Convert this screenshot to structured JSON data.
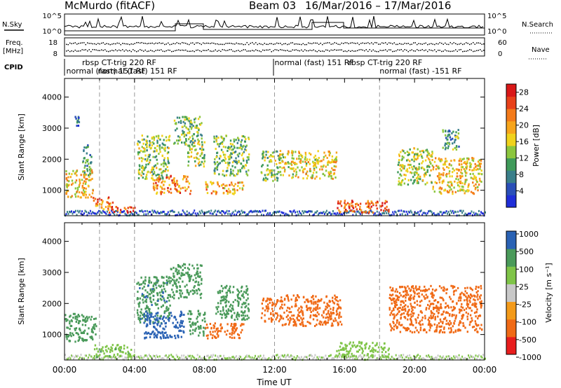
{
  "header": {
    "radar": "McMurdo (fitACF)",
    "beam": "Beam 03",
    "date_range": "16/Mar/2016 – 17/Mar/2016"
  },
  "top_panels": {
    "nsky_label": "N.Sky",
    "nsearch_label": "N.Search",
    "count_ticks_left": [
      "10^5",
      "10^0"
    ],
    "count_ticks_right": [
      "10^5",
      "10^0"
    ],
    "freq_label_1": "Freq.",
    "freq_label_2": "[MHz]",
    "freq_ticks": [
      "18",
      "8"
    ],
    "nave_label": "Nave",
    "nave_ticks": [
      "60",
      "0"
    ],
    "cpid_label": "CPID",
    "cpid_segments": [
      {
        "text": "rbsp CT-trig 220 RF",
        "row": 1,
        "t": 1.0
      },
      {
        "text": "normal (fast) 151 RF",
        "row": 2,
        "t": 0.1
      },
      {
        "text": "normal (fast) 151 RF",
        "row": 2,
        "t": 1.9
      },
      {
        "text": "normal (fast) 151 RF",
        "row": 1,
        "t": 12.0
      },
      {
        "text": "rbsp CT-trig 220 RF",
        "row": 1,
        "t": 16.2
      },
      {
        "text": "normal (fast) -151 RF",
        "row": 2,
        "t": 18.0
      }
    ]
  },
  "axes": {
    "x_ticks": [
      "00:00",
      "04:00",
      "08:00",
      "12:00",
      "16:00",
      "20:00",
      "00:00"
    ],
    "x_label": "Time UT",
    "y_ticks": [
      "1000",
      "2000",
      "3000",
      "4000"
    ],
    "y_label": "Slant Range [km]"
  },
  "colorbars": {
    "power": {
      "label": "Power [dB]",
      "ticks": [
        "4",
        "8",
        "12",
        "16",
        "20",
        "24",
        "28"
      ]
    },
    "velocity": {
      "label": "Velocity [m s⁻¹]",
      "ticks": [
        "1000",
        "500",
        "100",
        "25",
        "-25",
        "-100",
        "-500",
        "-1000"
      ]
    }
  },
  "chart_data": [
    {
      "type": "heatmap",
      "title": "Power",
      "xlabel": "Time UT",
      "ylabel": "Slant Range [km]",
      "xlim": [
        0,
        24
      ],
      "ylim": [
        180,
        4600
      ],
      "colorbar_label": "Power [dB]",
      "colorbar_range": [
        0,
        30
      ],
      "dashed_times": [
        2.0,
        4.0,
        12.0,
        18.0
      ],
      "patches": [
        {
          "t0": 0.0,
          "t1": 1.6,
          "r0": 800,
          "r1": 1700,
          "v": 18
        },
        {
          "t0": 0.5,
          "t1": 1.0,
          "r0": 3100,
          "r1": 3400,
          "v": 6
        },
        {
          "t0": 1.0,
          "t1": 1.5,
          "r0": 1500,
          "r1": 2500,
          "v": 9
        },
        {
          "t0": 1.6,
          "t1": 2.8,
          "r0": 400,
          "r1": 800,
          "v": 22
        },
        {
          "t0": 2.5,
          "t1": 4.0,
          "r0": 300,
          "r1": 500,
          "v": 26
        },
        {
          "t0": 4.1,
          "t1": 6.0,
          "r0": 1400,
          "r1": 2800,
          "v": 13
        },
        {
          "t0": 5.0,
          "t1": 7.2,
          "r0": 900,
          "r1": 1500,
          "v": 22
        },
        {
          "t0": 6.2,
          "t1": 7.8,
          "r0": 2500,
          "r1": 3400,
          "v": 12
        },
        {
          "t0": 7.0,
          "t1": 8.0,
          "r0": 1800,
          "r1": 2600,
          "v": 14
        },
        {
          "t0": 8.0,
          "t1": 10.2,
          "r0": 900,
          "r1": 1300,
          "v": 20
        },
        {
          "t0": 8.5,
          "t1": 10.5,
          "r0": 1500,
          "r1": 2800,
          "v": 12
        },
        {
          "t0": 11.2,
          "t1": 12.2,
          "r0": 1300,
          "r1": 2300,
          "v": 13
        },
        {
          "t0": 12.2,
          "t1": 15.5,
          "r0": 1400,
          "r1": 2300,
          "v": 17
        },
        {
          "t0": 15.5,
          "t1": 18.5,
          "r0": 300,
          "r1": 700,
          "v": 24
        },
        {
          "t0": 19.0,
          "t1": 21.0,
          "r0": 1200,
          "r1": 2400,
          "v": 15
        },
        {
          "t0": 21.0,
          "t1": 23.8,
          "r0": 900,
          "r1": 2100,
          "v": 18
        },
        {
          "t0": 21.5,
          "t1": 22.5,
          "r0": 2300,
          "r1": 3000,
          "v": 10
        }
      ]
    },
    {
      "type": "heatmap",
      "title": "Velocity",
      "xlabel": "Time UT",
      "ylabel": "Slant Range [km]",
      "xlim": [
        0,
        24
      ],
      "ylim": [
        180,
        4600
      ],
      "colorbar_label": "Velocity [m s⁻¹]",
      "colorbar_levels": [
        -1000,
        -500,
        -100,
        -25,
        25,
        100,
        500,
        1000
      ],
      "dashed_times": [
        2.0,
        4.0,
        12.0,
        18.0
      ],
      "patches": [
        {
          "t0": 0.0,
          "t1": 1.8,
          "r0": 800,
          "r1": 1700,
          "v": 300
        },
        {
          "t0": 1.6,
          "t1": 3.8,
          "r0": 300,
          "r1": 700,
          "v": 80
        },
        {
          "t0": 4.1,
          "t1": 6.0,
          "r0": 1400,
          "r1": 2900,
          "v": 400
        },
        {
          "t0": 4.5,
          "t1": 6.8,
          "r0": 900,
          "r1": 1800,
          "v": 900
        },
        {
          "t0": 6.0,
          "t1": 7.8,
          "r0": 2200,
          "r1": 3300,
          "v": 150
        },
        {
          "t0": 7.0,
          "t1": 8.0,
          "r0": 1000,
          "r1": 1800,
          "v": 350
        },
        {
          "t0": 8.0,
          "t1": 10.2,
          "r0": 900,
          "r1": 1400,
          "v": -300
        },
        {
          "t0": 8.6,
          "t1": 10.5,
          "r0": 1500,
          "r1": 2600,
          "v": 350
        },
        {
          "t0": 11.2,
          "t1": 12.2,
          "r0": 1400,
          "r1": 2200,
          "v": -300
        },
        {
          "t0": 12.2,
          "t1": 15.8,
          "r0": 1300,
          "r1": 2300,
          "v": -350
        },
        {
          "t0": 15.5,
          "t1": 18.5,
          "r0": 300,
          "r1": 800,
          "v": 60
        },
        {
          "t0": 18.5,
          "t1": 23.8,
          "r0": 1100,
          "r1": 2600,
          "v": -350
        }
      ]
    }
  ]
}
